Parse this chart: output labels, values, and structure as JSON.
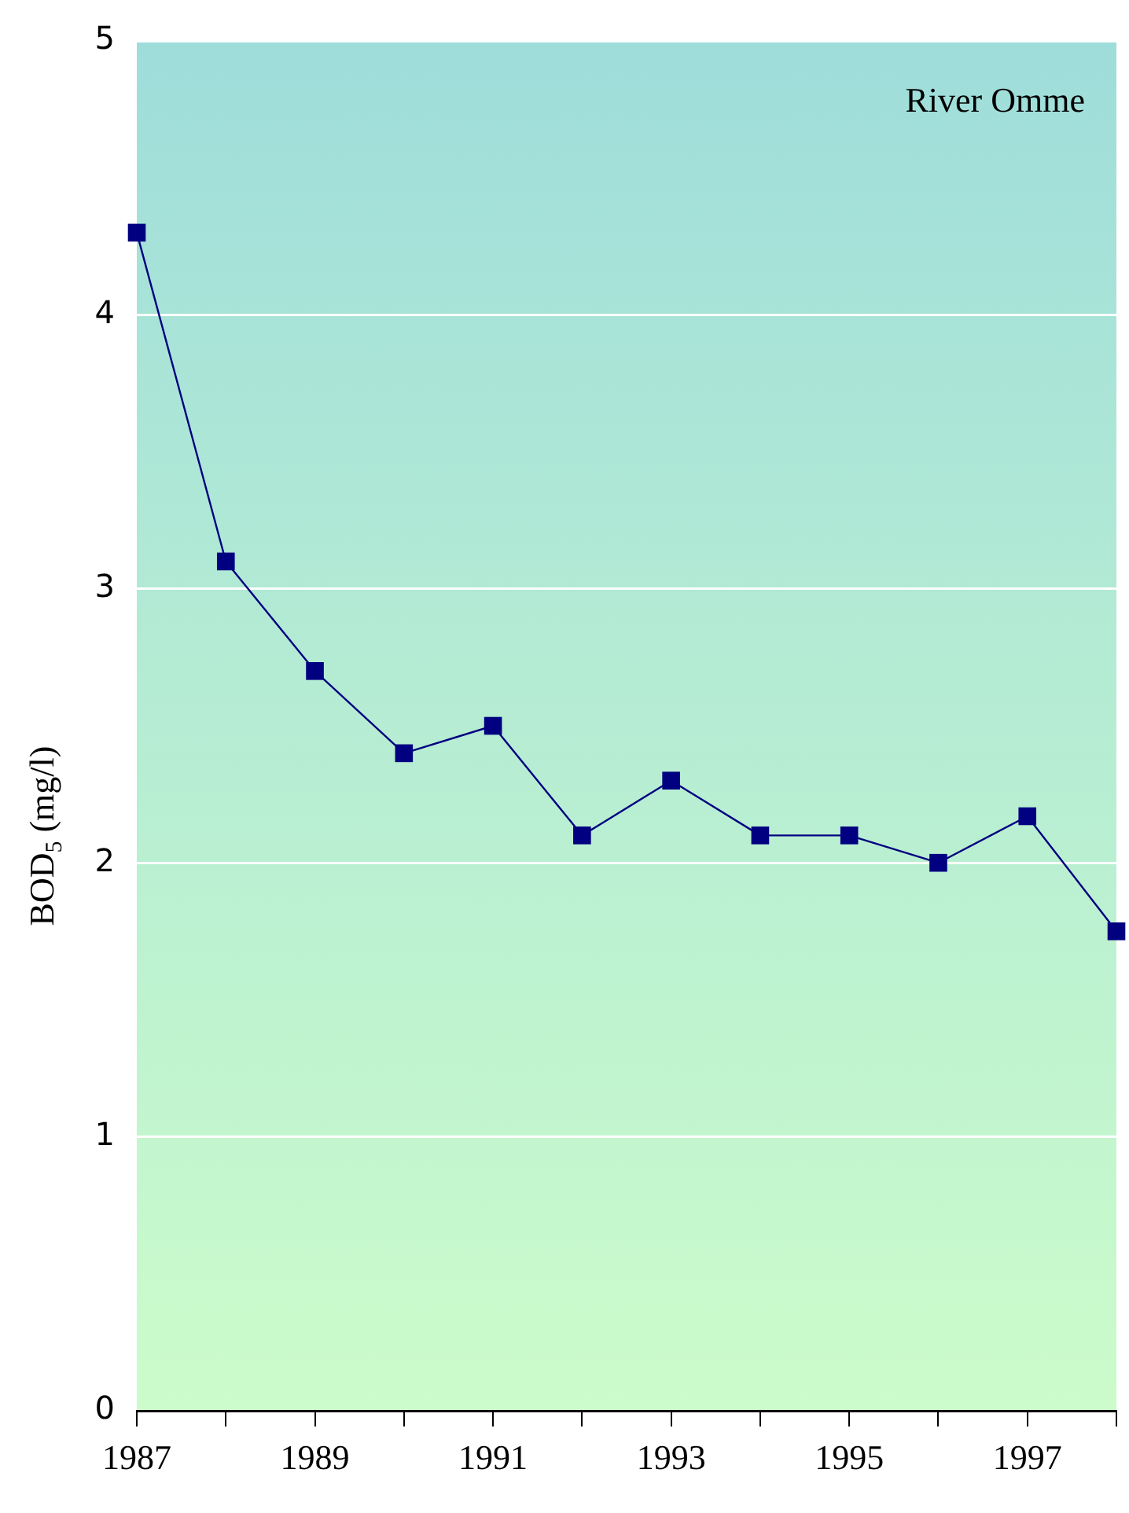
{
  "chart_data": {
    "type": "line",
    "ylabel": "BOD$_{5}$ (mg/l)",
    "annotations": [
      "River Omme"
    ],
    "x": [
      1987,
      1988,
      1989,
      1990,
      1991,
      1992,
      1993,
      1994,
      1995,
      1996,
      1997,
      1998
    ],
    "series": [
      {
        "color": "#000080",
        "values": [
          4.3,
          3.1,
          2.7,
          2.4,
          2.5,
          2.1,
          2.3,
          2.1,
          2.1,
          2.0,
          2.17,
          1.75
        ]
      }
    ],
    "xlim": [
      1987,
      1998
    ],
    "xticks": [
      1987,
      {
        "value": 1988,
        "label": null
      },
      1989,
      {
        "value": 1990,
        "label": null
      },
      1991,
      {
        "value": 1992,
        "label": null
      },
      1993,
      {
        "value": 1994,
        "label": null
      },
      1995,
      {
        "value": 1996,
        "label": null
      },
      1997,
      {
        "value": 1998,
        "label": null
      }
    ],
    "ylim": [
      0,
      5
    ],
    "yticks": [
      0,
      1,
      2,
      3,
      4,
      5
    ],
    "grid": "y",
    "legend": false,
    "marker": "square",
    "line_style": "solid"
  }
}
